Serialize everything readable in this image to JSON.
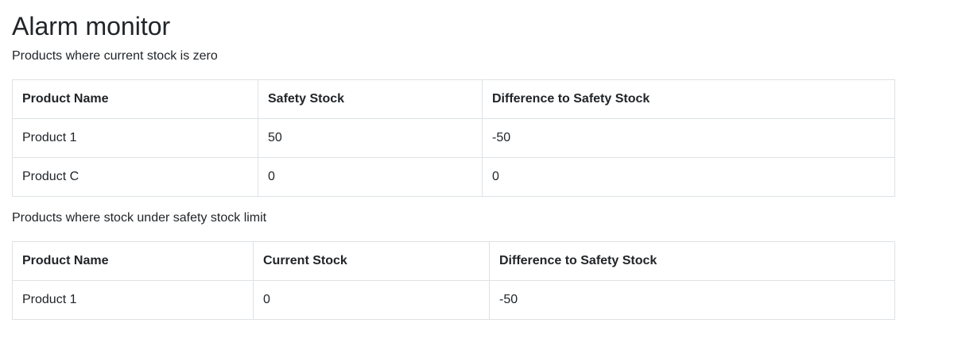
{
  "page": {
    "title": "Alarm monitor"
  },
  "zero_stock": {
    "caption": "Products where current stock is zero",
    "headers": [
      "Product Name",
      "Safety Stock",
      "Difference to Safety Stock"
    ],
    "rows": [
      [
        "Product 1",
        "50",
        "-50"
      ],
      [
        "Product C",
        "0",
        "0"
      ]
    ]
  },
  "under_safety": {
    "caption": "Products where stock under safety stock limit",
    "headers": [
      "Product Name",
      "Current Stock",
      "Difference to Safety Stock"
    ],
    "rows": [
      [
        "Product 1",
        "0",
        "-50"
      ]
    ]
  }
}
